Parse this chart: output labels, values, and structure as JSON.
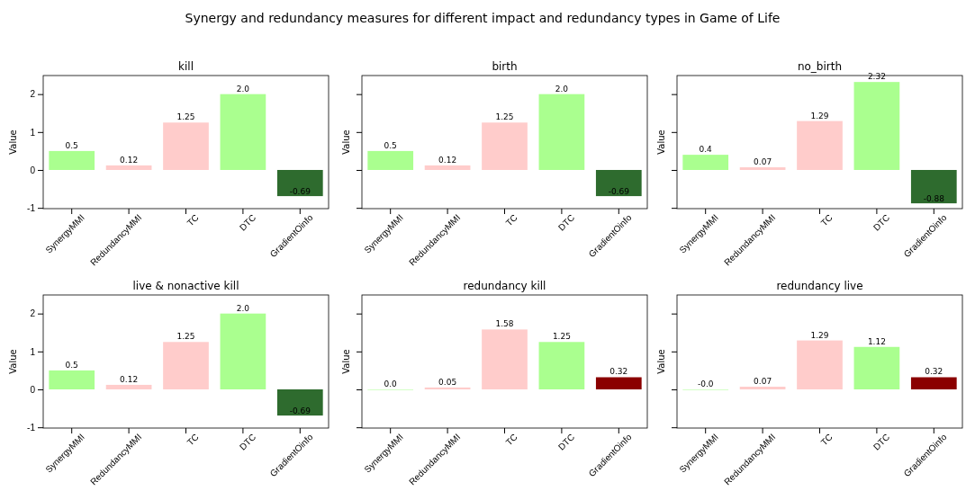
{
  "chart_data": [
    {
      "type": "bar",
      "title": "kill",
      "annotations": [
        "Synergy and redundancy measures for different impact and redundancy types in Game of Life"
      ],
      "ylabel": "Value",
      "categories": [
        "SynergyMMI",
        "RedundancyMMI",
        "TC",
        "DTC",
        "GradientOinfo"
      ],
      "values": [
        0.5,
        0.12,
        1.25,
        2.0,
        -0.69
      ],
      "value_labels": [
        "0.5",
        "0.12",
        "1.25",
        "2.0",
        "-0.69"
      ],
      "colors": [
        "#aaff8f",
        "#ffcccb",
        "#ffcccb",
        "#aaff8f",
        "#2e6b2e"
      ],
      "ylim": [
        -1.02,
        2.49
      ],
      "yticks": [
        -1,
        0,
        1,
        2
      ]
    },
    {
      "type": "bar",
      "title": "birth",
      "ylabel": "Value",
      "categories": [
        "SynergyMMI",
        "RedundancyMMI",
        "TC",
        "DTC",
        "GradientOinfo"
      ],
      "values": [
        0.5,
        0.12,
        1.25,
        2.0,
        -0.69
      ],
      "value_labels": [
        "0.5",
        "0.12",
        "1.25",
        "2.0",
        "-0.69"
      ],
      "colors": [
        "#aaff8f",
        "#ffcccb",
        "#ffcccb",
        "#aaff8f",
        "#2e6b2e"
      ],
      "ylim": [
        -1.02,
        2.49
      ],
      "yticks": [
        -1,
        0,
        1,
        2
      ],
      "tick_labels": "x"
    },
    {
      "type": "bar",
      "title": "no_birth",
      "ylabel": "Value",
      "categories": [
        "SynergyMMI",
        "RedundancyMMI",
        "TC",
        "DTC",
        "GradientOinfo"
      ],
      "values": [
        0.4,
        0.07,
        1.29,
        2.32,
        -0.88
      ],
      "value_labels": [
        "0.4",
        "0.07",
        "1.29",
        "2.32",
        "-0.88"
      ],
      "colors": [
        "#aaff8f",
        "#ffcccb",
        "#ffcccb",
        "#aaff8f",
        "#2e6b2e"
      ],
      "ylim": [
        -1.02,
        2.49
      ],
      "yticks": [
        -1,
        0,
        1,
        2
      ],
      "tick_labels": "x"
    },
    {
      "type": "bar",
      "title": "live & nonactive kill",
      "ylabel": "Value",
      "categories": [
        "SynergyMMI",
        "RedundancyMMI",
        "TC",
        "DTC",
        "GradientOinfo"
      ],
      "values": [
        0.5,
        0.12,
        1.25,
        2.0,
        -0.69
      ],
      "value_labels": [
        "0.5",
        "0.12",
        "1.25",
        "2.0",
        "-0.69"
      ],
      "colors": [
        "#aaff8f",
        "#ffcccb",
        "#ffcccb",
        "#aaff8f",
        "#2e6b2e"
      ],
      "ylim": [
        -1.02,
        2.49
      ],
      "yticks": [
        -1,
        0,
        1,
        2
      ]
    },
    {
      "type": "bar",
      "title": "redundancy kill",
      "ylabel": "Value",
      "categories": [
        "SynergyMMI",
        "RedundancyMMI",
        "TC",
        "DTC",
        "GradientOinfo"
      ],
      "values": [
        0.0,
        0.05,
        1.58,
        1.25,
        0.32
      ],
      "value_labels": [
        "0.0",
        "0.05",
        "1.58",
        "1.25",
        "0.32"
      ],
      "colors": [
        "#aaff8f",
        "#ffcccb",
        "#ffcccb",
        "#aaff8f",
        "#8b0000"
      ],
      "ylim": [
        -1.02,
        2.49
      ],
      "yticks": [
        -1,
        0,
        1,
        2
      ],
      "tick_labels": "x"
    },
    {
      "type": "bar",
      "title": "redundancy live",
      "ylabel": "Value",
      "categories": [
        "SynergyMMI",
        "RedundancyMMI",
        "TC",
        "DTC",
        "GradientOinfo"
      ],
      "values": [
        0.0,
        0.07,
        1.29,
        1.12,
        0.32
      ],
      "value_labels": [
        "-0.0",
        "0.07",
        "1.29",
        "1.12",
        "0.32"
      ],
      "colors": [
        "#aaff8f",
        "#ffcccb",
        "#ffcccb",
        "#aaff8f",
        "#8b0000"
      ],
      "ylim": [
        -1.02,
        2.49
      ],
      "yticks": [
        -1,
        0,
        1,
        2
      ],
      "tick_labels": "x"
    }
  ]
}
